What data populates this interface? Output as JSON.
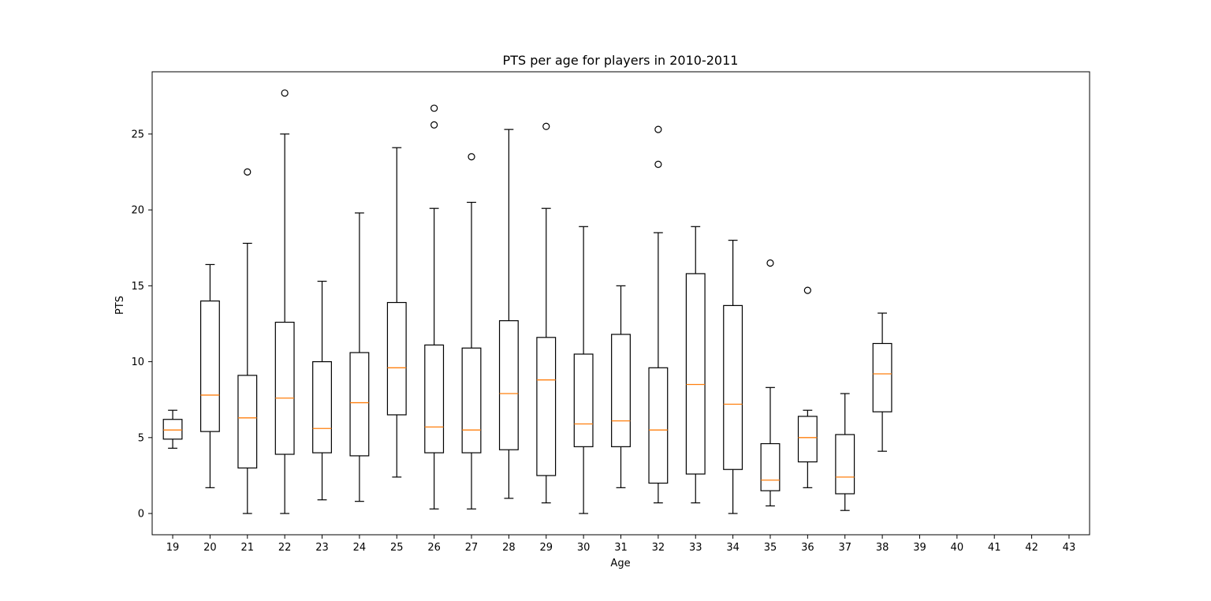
{
  "chart_data": {
    "type": "boxplot",
    "title": "PTS per age for players in 2010-2011",
    "xlabel": "Age",
    "ylabel": "PTS",
    "ylim": [
      -1.4,
      29.1
    ],
    "yticks": [
      0,
      5,
      10,
      15,
      20,
      25
    ],
    "grid": false,
    "categories": [
      "19",
      "20",
      "21",
      "22",
      "23",
      "24",
      "25",
      "26",
      "27",
      "28",
      "29",
      "30",
      "31",
      "32",
      "33",
      "34",
      "35",
      "36",
      "37",
      "38",
      "39",
      "40",
      "41",
      "42",
      "43"
    ],
    "boxes": [
      {
        "age": "19",
        "whislo": 4.3,
        "q1": 4.9,
        "med": 5.5,
        "q3": 6.2,
        "whishi": 6.8,
        "fliers": []
      },
      {
        "age": "20",
        "whislo": 1.7,
        "q1": 5.4,
        "med": 7.8,
        "q3": 14.0,
        "whishi": 16.4,
        "fliers": []
      },
      {
        "age": "21",
        "whislo": 0.0,
        "q1": 3.0,
        "med": 6.3,
        "q3": 9.1,
        "whishi": 17.8,
        "fliers": [
          22.5
        ]
      },
      {
        "age": "22",
        "whislo": 0.0,
        "q1": 3.9,
        "med": 7.6,
        "q3": 12.6,
        "whishi": 25.0,
        "fliers": [
          27.7
        ]
      },
      {
        "age": "23",
        "whislo": 0.9,
        "q1": 4.0,
        "med": 5.6,
        "q3": 10.0,
        "whishi": 15.3,
        "fliers": []
      },
      {
        "age": "24",
        "whislo": 0.8,
        "q1": 3.8,
        "med": 7.3,
        "q3": 10.6,
        "whishi": 19.8,
        "fliers": []
      },
      {
        "age": "25",
        "whislo": 2.4,
        "q1": 6.5,
        "med": 9.6,
        "q3": 13.9,
        "whishi": 24.1,
        "fliers": []
      },
      {
        "age": "26",
        "whislo": 0.3,
        "q1": 4.0,
        "med": 5.7,
        "q3": 11.1,
        "whishi": 20.1,
        "fliers": [
          25.6,
          26.7
        ]
      },
      {
        "age": "27",
        "whislo": 0.3,
        "q1": 4.0,
        "med": 5.5,
        "q3": 10.9,
        "whishi": 20.5,
        "fliers": [
          23.5
        ]
      },
      {
        "age": "28",
        "whislo": 1.0,
        "q1": 4.2,
        "med": 7.9,
        "q3": 12.7,
        "whishi": 25.3,
        "fliers": []
      },
      {
        "age": "29",
        "whislo": 0.7,
        "q1": 2.5,
        "med": 8.8,
        "q3": 11.6,
        "whishi": 20.1,
        "fliers": [
          25.5
        ]
      },
      {
        "age": "30",
        "whislo": 0.0,
        "q1": 4.4,
        "med": 5.9,
        "q3": 10.5,
        "whishi": 18.9,
        "fliers": []
      },
      {
        "age": "31",
        "whislo": 1.7,
        "q1": 4.4,
        "med": 6.1,
        "q3": 11.8,
        "whishi": 15.0,
        "fliers": []
      },
      {
        "age": "32",
        "whislo": 0.7,
        "q1": 2.0,
        "med": 5.5,
        "q3": 9.6,
        "whishi": 18.5,
        "fliers": [
          23.0,
          25.3
        ]
      },
      {
        "age": "33",
        "whislo": 0.7,
        "q1": 2.6,
        "med": 8.5,
        "q3": 15.8,
        "whishi": 18.9,
        "fliers": []
      },
      {
        "age": "34",
        "whislo": 0.0,
        "q1": 2.9,
        "med": 7.2,
        "q3": 13.7,
        "whishi": 18.0,
        "fliers": []
      },
      {
        "age": "35",
        "whislo": 0.5,
        "q1": 1.5,
        "med": 2.2,
        "q3": 4.6,
        "whishi": 8.3,
        "fliers": [
          16.5
        ]
      },
      {
        "age": "36",
        "whislo": 1.7,
        "q1": 3.4,
        "med": 5.0,
        "q3": 6.4,
        "whishi": 6.8,
        "fliers": [
          14.7
        ]
      },
      {
        "age": "37",
        "whislo": 0.2,
        "q1": 1.3,
        "med": 2.4,
        "q3": 5.2,
        "whishi": 7.9,
        "fliers": []
      },
      {
        "age": "38",
        "whislo": 4.1,
        "q1": 6.7,
        "med": 9.2,
        "q3": 11.2,
        "whishi": 13.2,
        "fliers": []
      }
    ],
    "colors": {
      "box": "#000000",
      "median": "#ff7f0e",
      "flier": "#000000"
    }
  }
}
